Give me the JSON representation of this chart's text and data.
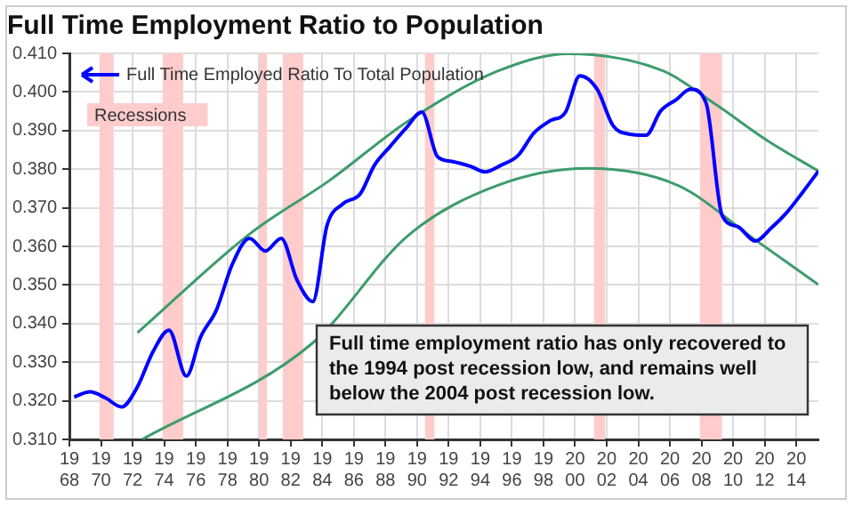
{
  "chart_data": {
    "type": "line",
    "title": "Full Time Employment Ratio to Population",
    "xlim": [
      1968,
      2015.4
    ],
    "xticks": [
      {
        "value": 1968,
        "label": "1968"
      },
      {
        "value": 1970,
        "label": "1970"
      },
      {
        "value": 1972,
        "label": "1972"
      },
      {
        "value": 1974,
        "label": "1974"
      },
      {
        "value": 1976,
        "label": "1976"
      },
      {
        "value": 1978,
        "label": "1978"
      },
      {
        "value": 1980,
        "label": "1980"
      },
      {
        "value": 1982,
        "label": "1982"
      },
      {
        "value": 1984,
        "label": "1984"
      },
      {
        "value": 1986,
        "label": "1986"
      },
      {
        "value": 1988,
        "label": "1988"
      },
      {
        "value": 1990,
        "label": "1990"
      },
      {
        "value": 1992,
        "label": "1992"
      },
      {
        "value": 1994,
        "label": "1994"
      },
      {
        "value": 1996,
        "label": "1996"
      },
      {
        "value": 1998,
        "label": "1998"
      },
      {
        "value": 2000,
        "label": "2000"
      },
      {
        "value": 2002,
        "label": "2002"
      },
      {
        "value": 2004,
        "label": "2004"
      },
      {
        "value": 2006,
        "label": "2006"
      },
      {
        "value": 2008,
        "label": "2008"
      },
      {
        "value": 2010,
        "label": "2010"
      },
      {
        "value": 2012,
        "label": "2012"
      },
      {
        "value": 2014,
        "label": "2014"
      }
    ],
    "ylim": [
      0.31,
      0.41
    ],
    "yticks": [
      {
        "value": 0.31,
        "label": "0.310"
      },
      {
        "value": 0.32,
        "label": "0.320"
      },
      {
        "value": 0.33,
        "label": "0.330"
      },
      {
        "value": 0.34,
        "label": "0.340"
      },
      {
        "value": 0.35,
        "label": "0.350"
      },
      {
        "value": 0.36,
        "label": "0.360"
      },
      {
        "value": 0.37,
        "label": "0.370"
      },
      {
        "value": 0.38,
        "label": "0.380"
      },
      {
        "value": 0.39,
        "label": "0.390"
      },
      {
        "value": 0.4,
        "label": "0.400"
      },
      {
        "value": 0.41,
        "label": "0.410"
      }
    ],
    "grid": true,
    "legend": "top left",
    "marker": "none",
    "line_style": "solid",
    "series": [
      {
        "name": "Full Time Employed Ratio To Total Population",
        "color": "#0000ff",
        "x": [
          1968.3,
          1969.3,
          1970.3,
          1971.3,
          1972.3,
          1973.3,
          1974.3,
          1975.4,
          1976.3,
          1977.3,
          1978.3,
          1979.4,
          1980.4,
          1981.4,
          1982.4,
          1983.4,
          1984.3,
          1985.3,
          1986.4,
          1987.3,
          1988.3,
          1989.3,
          1990.3,
          1991.3,
          1992.2,
          1993.4,
          1994.3,
          1995.3,
          1996.4,
          1997.4,
          1998.4,
          1999.4,
          2000.3,
          2001.4,
          2002.4,
          2003.4,
          2004.5,
          2005.4,
          2006.4,
          2007.3,
          2008.3,
          2009.3,
          2010.3,
          2011.4,
          2012.4,
          2013.4,
          2014.4,
          2015.4
        ],
        "values": [
          0.321,
          0.3223,
          0.3207,
          0.3184,
          0.3236,
          0.3328,
          0.3383,
          0.3264,
          0.3365,
          0.3435,
          0.3553,
          0.3621,
          0.3588,
          0.3621,
          0.3513,
          0.3457,
          0.3654,
          0.371,
          0.3736,
          0.381,
          0.3859,
          0.3906,
          0.3948,
          0.3832,
          0.382,
          0.3807,
          0.3793,
          0.381,
          0.3836,
          0.3894,
          0.3925,
          0.3948,
          0.4042,
          0.4007,
          0.3913,
          0.3891,
          0.3888,
          0.395,
          0.398,
          0.4007,
          0.397,
          0.3681,
          0.3651,
          0.3614,
          0.3647,
          0.3688,
          0.374,
          0.3795
        ]
      },
      {
        "type": "line",
        "color": "#3d9c6c",
        "x": [
          1972.3,
          1979.4,
          1984.5,
          1989.4,
          1995.1,
          1999.6,
          2005.6,
          2009.0,
          2012.1,
          2015.4
        ],
        "values": [
          0.3376,
          0.3632,
          0.3772,
          0.3924,
          0.4054,
          0.4099,
          0.4054,
          0.3965,
          0.3876,
          0.3795
        ]
      },
      {
        "type": "line",
        "color": "#3d9c6c",
        "x": [
          1972.6,
          1983.4,
          1989.4,
          1995.1,
          2000.8,
          2006.5,
          2011.4,
          2015.4
        ],
        "values": [
          0.31,
          0.335,
          0.3627,
          0.3758,
          0.3802,
          0.3758,
          0.3617,
          0.3501
        ]
      }
    ],
    "bands": [
      {
        "axis": "x",
        "from": 1969.9,
        "to": 1970.8,
        "label": "Recessions",
        "color": "#ffcccc"
      },
      {
        "axis": "x",
        "from": 1973.9,
        "to": 1975.2,
        "color": "#ffcccc"
      },
      {
        "axis": "x",
        "from": 1980.0,
        "to": 1980.5,
        "color": "#ffcccc"
      },
      {
        "axis": "x",
        "from": 1981.5,
        "to": 1982.8,
        "color": "#ffcccc"
      },
      {
        "axis": "x",
        "from": 1990.5,
        "to": 1991.1,
        "color": "#ffcccc"
      },
      {
        "axis": "x",
        "from": 2001.2,
        "to": 2001.9,
        "color": "#ffcccc"
      },
      {
        "axis": "x",
        "from": 2007.9,
        "to": 2009.3,
        "color": "#ffcccc"
      }
    ],
    "annotations": [
      "Full time employment ratio has only recovered to the 1994 post recession low, and remains well below the 2004 post recession low."
    ]
  }
}
